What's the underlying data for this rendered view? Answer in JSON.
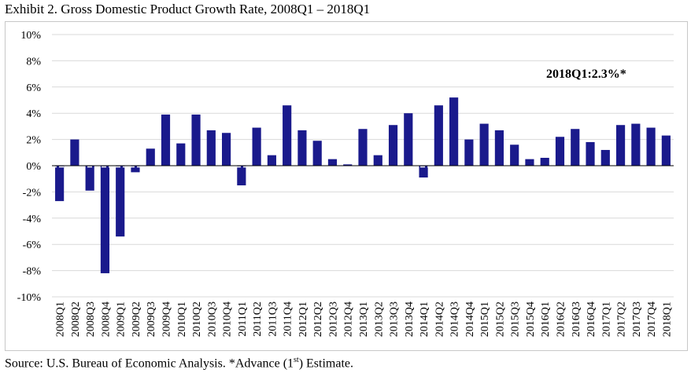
{
  "title": "Exhibit 2. Gross Domestic Product Growth Rate, 2008Q1 – 2018Q1",
  "source": {
    "text": "Source: U.S. Bureau of Economic Analysis.    *Advance (1",
    "sup": "st",
    "text_after": ") Estimate."
  },
  "annotation": "2018Q1:2.3%*",
  "colors": {
    "bar": "#1a1a8c",
    "grid": "#d9d9d9",
    "axis": "#000000"
  },
  "chart_data": {
    "type": "bar",
    "title": "Exhibit 2. Gross Domestic Product Growth Rate, 2008Q1 – 2018Q1",
    "xlabel": "",
    "ylabel": "",
    "ylim": [
      -10,
      10
    ],
    "yticks": [
      10,
      8,
      6,
      4,
      2,
      0,
      -2,
      -4,
      -6,
      -8,
      -10
    ],
    "ytick_labels": [
      "10%",
      "8%",
      "6%",
      "4%",
      "2%",
      "0%",
      "-2%",
      "-4%",
      "-6%",
      "-8%",
      "-10%"
    ],
    "grid": true,
    "categories": [
      "2008Q1",
      "2008Q2",
      "2008Q3",
      "2008Q4",
      "2009Q1",
      "2009Q2",
      "2009Q3",
      "2009Q4",
      "2010Q1",
      "2010Q2",
      "2010Q3",
      "2010Q4",
      "2011Q1",
      "2011Q2",
      "2011Q3",
      "2011Q4",
      "2012Q1",
      "2012Q2",
      "2012Q3",
      "2012Q4",
      "2013Q1",
      "2013Q2",
      "2013Q3",
      "2013Q4",
      "2014Q1",
      "2014Q2",
      "2014Q3",
      "2014Q4",
      "2015Q1",
      "2015Q2",
      "2015Q3",
      "2015Q4",
      "2016Q1",
      "2016Q2",
      "2016Q3",
      "2016Q4",
      "2017Q1",
      "2017Q2",
      "2017Q3",
      "2017Q4",
      "2018Q1"
    ],
    "values": [
      -2.7,
      2.0,
      -1.9,
      -8.2,
      -5.4,
      -0.5,
      1.3,
      3.9,
      1.7,
      3.9,
      2.7,
      2.5,
      -1.5,
      2.9,
      0.8,
      4.6,
      2.7,
      1.9,
      0.5,
      0.1,
      2.8,
      0.8,
      3.1,
      4.0,
      -0.9,
      4.6,
      5.2,
      2.0,
      3.2,
      2.7,
      1.6,
      0.5,
      0.6,
      2.2,
      2.8,
      1.8,
      1.2,
      3.1,
      3.2,
      2.9,
      2.3
    ]
  }
}
